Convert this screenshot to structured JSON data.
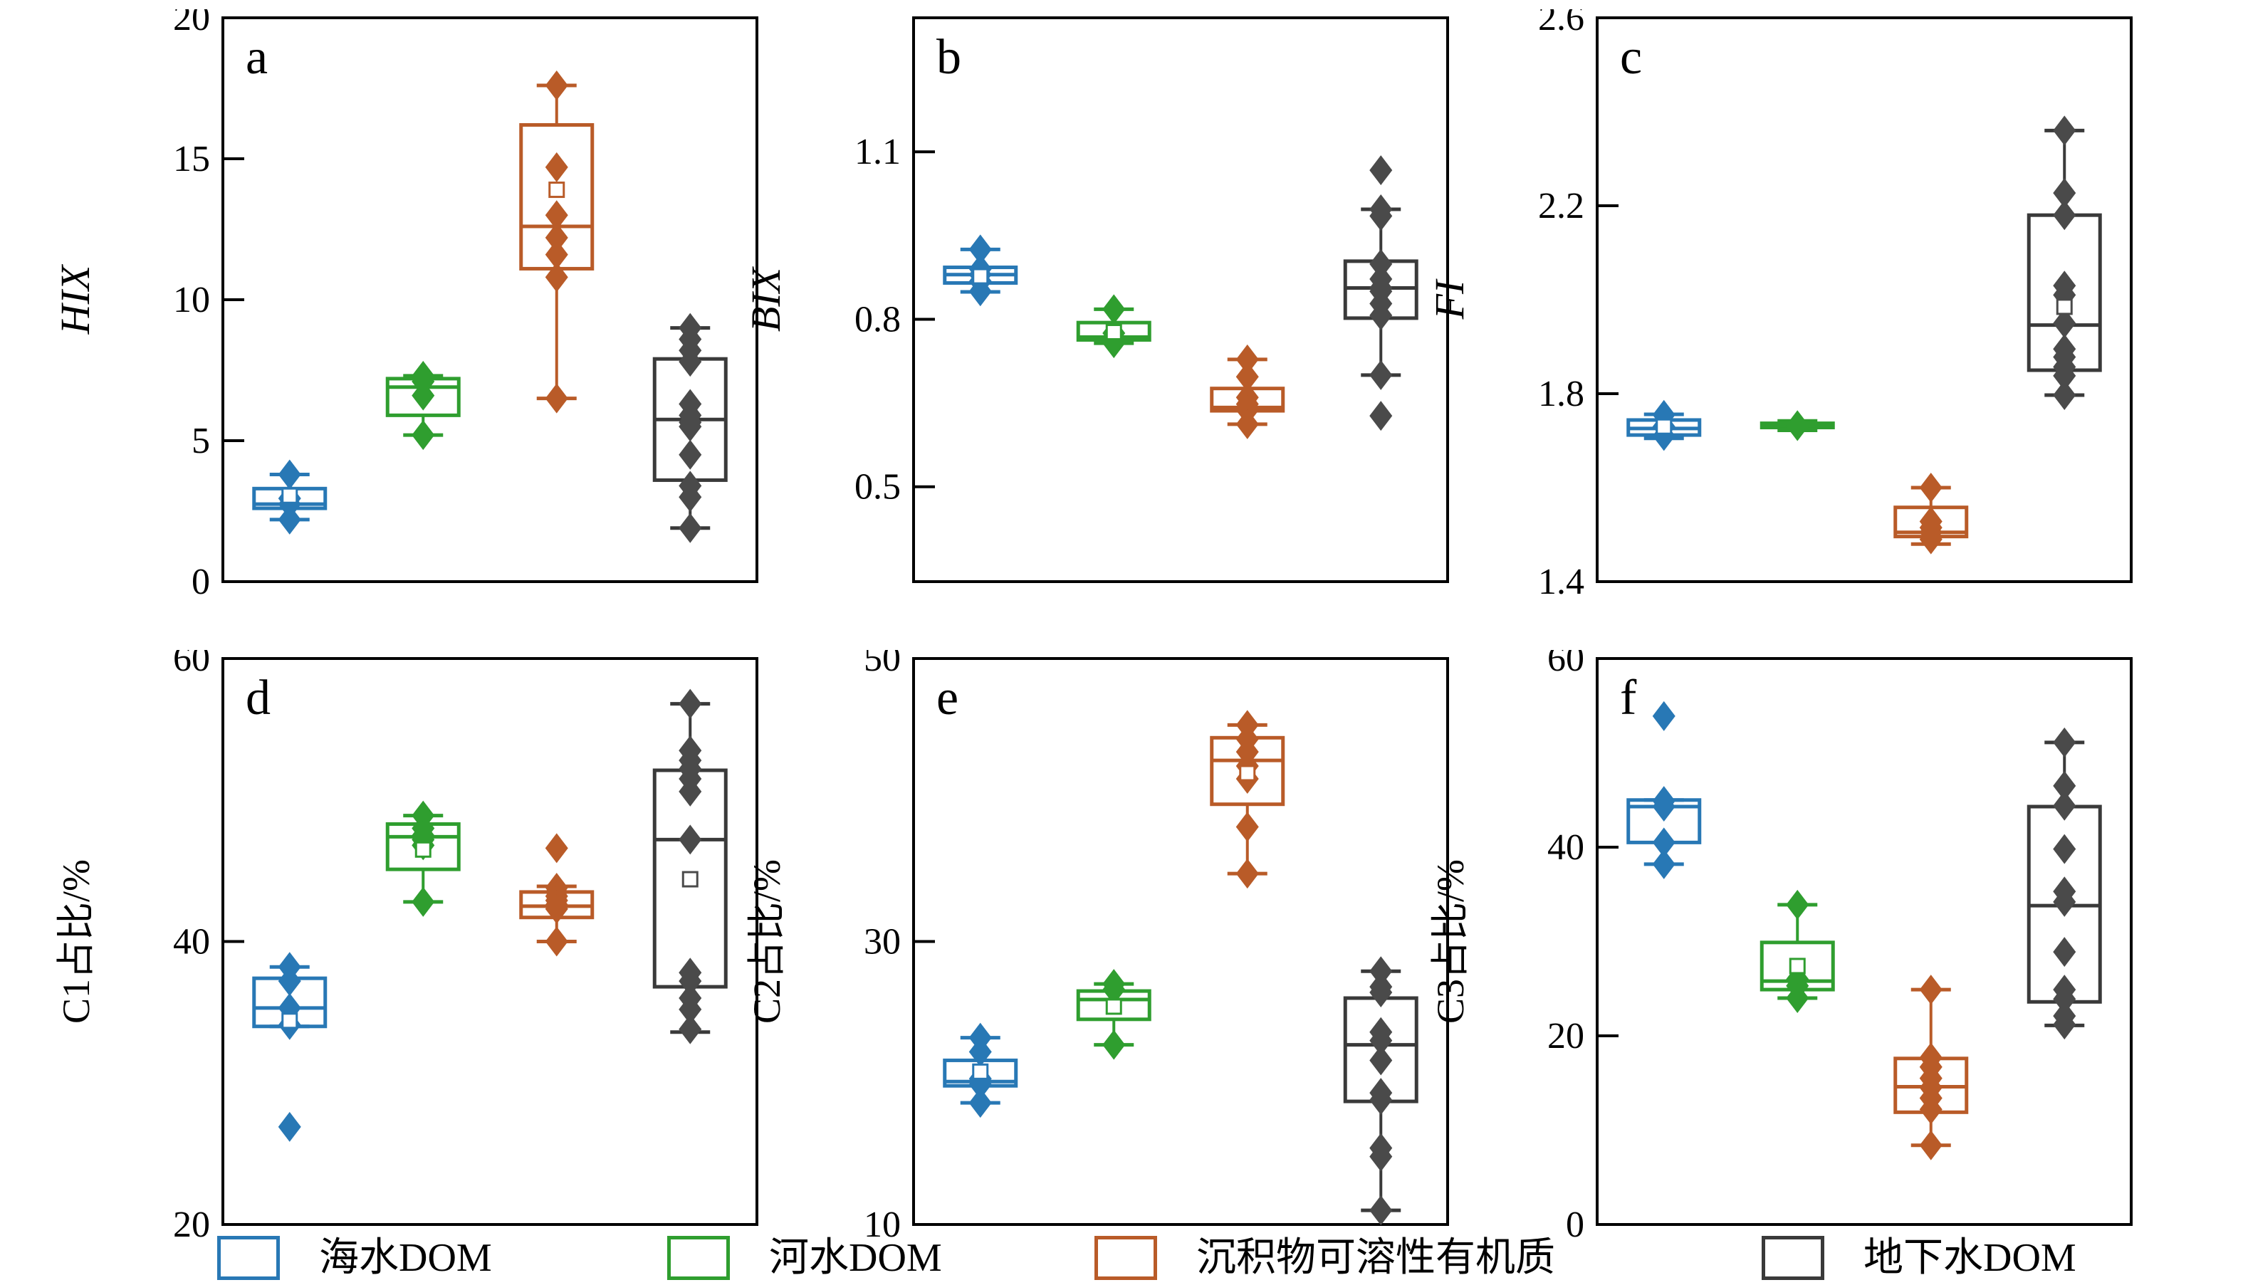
{
  "legend": {
    "items": [
      {
        "label": "海水DOM",
        "color": "#2878b5"
      },
      {
        "label": "河水DOM",
        "color": "#2f9e2f"
      },
      {
        "label": "沉积物可溶性有机质",
        "color": "#b95b28"
      },
      {
        "label": "地下水DOM",
        "color": "#3a3a3a"
      }
    ]
  },
  "chart_data": [
    {
      "type": "box",
      "panel_label": "a",
      "ylabel": "HIX",
      "ylabel_italic": true,
      "ylim": [
        0,
        20
      ],
      "yticks": [
        0,
        5,
        10,
        15,
        20
      ],
      "groups": [
        {
          "name": "海水DOM",
          "color": "#2878b5",
          "q1": 2.6,
          "q3": 3.3,
          "median": 2.75,
          "whisker_low": 2.2,
          "whisker_high": 3.8,
          "mean": 3.05,
          "points": [
            3.8,
            2.95,
            2.75,
            2.2
          ]
        },
        {
          "name": "河水DOM",
          "color": "#2f9e2f",
          "q1": 5.9,
          "q3": 7.2,
          "median": 6.9,
          "whisker_low": 5.2,
          "whisker_high": 7.3,
          "points": [
            7.3,
            7.1,
            6.6,
            5.2
          ]
        },
        {
          "name": "沉积物可溶性有机质",
          "color": "#b95b28",
          "q1": 11.1,
          "q3": 16.2,
          "median": 12.6,
          "whisker_low": 6.5,
          "whisker_high": 17.6,
          "mean": 13.9,
          "points": [
            17.6,
            14.7,
            13.0,
            12.2,
            11.6,
            10.8,
            6.5
          ]
        },
        {
          "name": "地下水DOM",
          "color": "#3a3a3a",
          "marker_color": "#4a4a4a",
          "q1": 3.6,
          "q3": 7.9,
          "median": 5.75,
          "whisker_low": 1.9,
          "whisker_high": 9.0,
          "points": [
            9.0,
            8.6,
            8.2,
            7.8,
            6.3,
            5.9,
            5.65,
            5.5,
            4.5,
            3.4,
            3.0,
            1.9
          ]
        }
      ]
    },
    {
      "type": "box",
      "panel_label": "b",
      "ylabel": "BIX",
      "ylabel_italic": true,
      "ylim": [
        0.33,
        1.34
      ],
      "yticks": [
        0.5,
        0.8,
        1.1
      ],
      "groups": [
        {
          "name": "海水DOM",
          "color": "#2878b5",
          "q1": 0.865,
          "q3": 0.893,
          "median": 0.88,
          "whisker_low": 0.849,
          "whisker_high": 0.925,
          "mean": 0.877,
          "points": [
            0.925,
            0.89,
            0.88,
            0.868,
            0.85
          ]
        },
        {
          "name": "河水DOM",
          "color": "#2f9e2f",
          "q1": 0.763,
          "q3": 0.794,
          "median": 0.768,
          "whisker_low": 0.757,
          "whisker_high": 0.818,
          "mean": 0.777,
          "points": [
            0.818,
            0.775,
            0.764,
            0.757
          ]
        },
        {
          "name": "沉积物可溶性有机质",
          "color": "#b95b28",
          "q1": 0.636,
          "q3": 0.676,
          "median": 0.642,
          "whisker_low": 0.612,
          "whisker_high": 0.728,
          "points": [
            0.728,
            0.697,
            0.66,
            0.648,
            0.637,
            0.612
          ]
        },
        {
          "name": "地下水DOM",
          "color": "#3a3a3a",
          "marker_color": "#4a4a4a",
          "q1": 0.802,
          "q3": 0.904,
          "median": 0.856,
          "whisker_low": 0.7,
          "whisker_high": 0.997,
          "points": [
            1.067,
            0.997,
            0.985,
            0.899,
            0.872,
            0.856,
            0.85,
            0.828,
            0.807,
            0.7,
            0.627
          ]
        }
      ]
    },
    {
      "type": "box",
      "panel_label": "c",
      "ylabel": "FI",
      "ylabel_italic": true,
      "ylim": [
        1.4,
        2.6
      ],
      "yticks": [
        1.4,
        1.8,
        2.2,
        2.6
      ],
      "groups": [
        {
          "name": "海水DOM",
          "color": "#2878b5",
          "q1": 1.712,
          "q3": 1.744,
          "median": 1.726,
          "whisker_low": 1.705,
          "whisker_high": 1.756,
          "mean": 1.73,
          "points": [
            1.755,
            1.73,
            1.71
          ]
        },
        {
          "name": "河水DOM",
          "color": "#2f9e2f",
          "q1": 1.728,
          "q3": 1.737,
          "median": 1.732,
          "whisker_low": 1.722,
          "whisker_high": 1.742,
          "points": [
            1.733,
            1.731
          ]
        },
        {
          "name": "沉积物可溶性有机质",
          "color": "#b95b28",
          "q1": 1.496,
          "q3": 1.558,
          "median": 1.505,
          "whisker_low": 1.48,
          "whisker_high": 1.6,
          "points": [
            1.6,
            1.528,
            1.515,
            1.505,
            1.49
          ]
        },
        {
          "name": "地下水DOM",
          "color": "#3a3a3a",
          "marker_color": "#4a4a4a",
          "q1": 1.85,
          "q3": 2.18,
          "median": 1.946,
          "whisker_low": 1.797,
          "whisker_high": 2.36,
          "mean": 1.985,
          "points": [
            2.36,
            2.227,
            2.18,
            2.03,
            2.01,
            1.95,
            1.895,
            1.878,
            1.857,
            1.838,
            1.797
          ]
        }
      ]
    },
    {
      "type": "box",
      "panel_label": "d",
      "ylabel": "C1占比/%",
      "ylabel_italic": false,
      "ylim": [
        20,
        60
      ],
      "yticks": [
        20,
        40,
        60
      ],
      "groups": [
        {
          "name": "海水DOM",
          "color": "#2878b5",
          "q1": 34.0,
          "q3": 37.4,
          "median": 35.3,
          "whisker_low": 34.0,
          "whisker_high": 38.2,
          "mean": 34.4,
          "points": [
            38.2,
            37.2,
            35.3,
            34.1,
            26.9
          ]
        },
        {
          "name": "河水DOM",
          "color": "#2f9e2f",
          "q1": 45.1,
          "q3": 48.3,
          "median": 47.4,
          "whisker_low": 42.8,
          "whisker_high": 48.9,
          "mean": 46.5,
          "points": [
            48.9,
            48.0,
            47.5,
            47.2,
            46.8,
            42.8
          ]
        },
        {
          "name": "沉积物可溶性有机质",
          "color": "#b95b28",
          "q1": 41.7,
          "q3": 43.5,
          "median": 42.5,
          "whisker_low": 40.0,
          "whisker_high": 43.9,
          "points": [
            46.6,
            43.8,
            43.5,
            43.2,
            42.9,
            42.6,
            42.3,
            40.0
          ]
        },
        {
          "name": "地下水DOM",
          "color": "#3a3a3a",
          "marker_color": "#4a4a4a",
          "q1": 36.8,
          "q3": 52.1,
          "median": 47.2,
          "whisker_low": 33.6,
          "whisker_high": 56.8,
          "mean": 44.4,
          "points": [
            56.8,
            53.5,
            52.8,
            52.2,
            51.5,
            50.6,
            47.2,
            37.8,
            37.2,
            36.0,
            35.2,
            33.8
          ]
        }
      ]
    },
    {
      "type": "box",
      "panel_label": "e",
      "ylabel": "C2占比/%",
      "ylabel_italic": false,
      "ylim": [
        10,
        50
      ],
      "yticks": [
        10,
        30,
        50
      ],
      "groups": [
        {
          "name": "海水DOM",
          "color": "#2878b5",
          "q1": 19.8,
          "q3": 21.6,
          "median": 20.1,
          "whisker_low": 18.6,
          "whisker_high": 23.2,
          "mean": 20.8,
          "points": [
            23.2,
            22.2,
            20.3,
            19.9,
            18.6
          ]
        },
        {
          "name": "河水DOM",
          "color": "#2f9e2f",
          "q1": 24.5,
          "q3": 26.5,
          "median": 25.9,
          "whisker_low": 22.7,
          "whisker_high": 27.0,
          "mean": 25.4,
          "points": [
            27.0,
            26.6,
            22.7
          ]
        },
        {
          "name": "沉积物可溶性有机质",
          "color": "#b95b28",
          "q1": 39.7,
          "q3": 44.4,
          "median": 42.8,
          "whisker_low": 34.8,
          "whisker_high": 45.3,
          "mean": 41.9,
          "points": [
            45.3,
            44.3,
            43.4,
            42.4,
            41.5,
            38.1,
            34.8
          ]
        },
        {
          "name": "地下水DOM",
          "color": "#3a3a3a",
          "marker_color": "#4a4a4a",
          "q1": 18.7,
          "q3": 26.0,
          "median": 22.7,
          "whisker_low": 11.0,
          "whisker_high": 27.9,
          "points": [
            27.9,
            26.8,
            26.4,
            23.6,
            23.0,
            21.6,
            19.3,
            18.8,
            15.4,
            14.8,
            11.0
          ]
        }
      ]
    },
    {
      "type": "box",
      "panel_label": "f",
      "ylabel": "C3占比/%",
      "ylabel_italic": false,
      "ylim": [
        0,
        60
      ],
      "yticks": [
        0,
        20,
        40,
        60
      ],
      "groups": [
        {
          "name": "海水DOM",
          "color": "#2878b5",
          "q1": 40.5,
          "q3": 45.0,
          "median": 44.3,
          "whisker_low": 38.2,
          "whisker_high": 45.0,
          "points": [
            53.9,
            44.9,
            44.3,
            40.5,
            38.2
          ]
        },
        {
          "name": "河水DOM",
          "color": "#2f9e2f",
          "q1": 24.9,
          "q3": 29.9,
          "median": 25.8,
          "whisker_low": 24.0,
          "whisker_high": 33.9,
          "mean": 27.4,
          "points": [
            33.9,
            26.0,
            25.3,
            24.0
          ]
        },
        {
          "name": "沉积物可溶性有机质",
          "color": "#b95b28",
          "q1": 11.9,
          "q3": 17.6,
          "median": 14.6,
          "whisker_low": 8.4,
          "whisker_high": 24.9,
          "points": [
            24.9,
            17.7,
            16.7,
            15.5,
            14.5,
            13.4,
            12.2,
            8.4
          ]
        },
        {
          "name": "地下水DOM",
          "color": "#3a3a3a",
          "marker_color": "#4a4a4a",
          "q1": 23.6,
          "q3": 44.3,
          "median": 33.8,
          "whisker_low": 21.1,
          "whisker_high": 51.1,
          "points": [
            51.1,
            46.5,
            44.4,
            39.8,
            35.3,
            34.2,
            28.9,
            24.9,
            23.9,
            22.1,
            21.2
          ]
        }
      ]
    }
  ]
}
